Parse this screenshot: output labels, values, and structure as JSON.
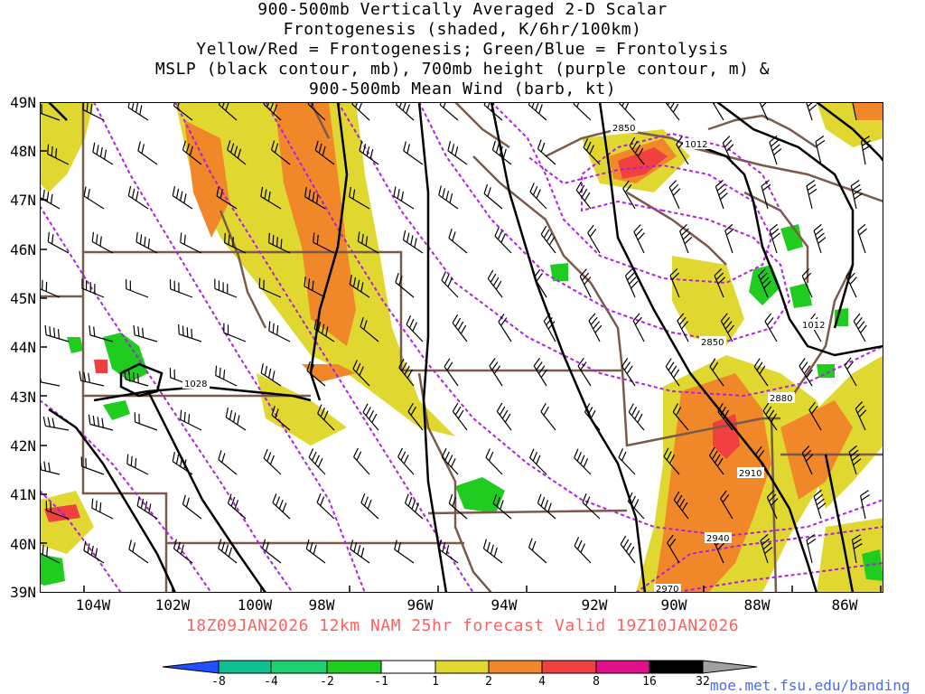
{
  "title_lines": [
    "900-500mb Vertically Averaged 2-D Scalar",
    "Frontogenesis (shaded, K/6hr/100km)",
    "Yellow/Red = Frontogenesis;  Green/Blue = Frontolysis",
    "MSLP (black contour, mb), 700mb height (purple contour, m) &",
    "900-500mb Mean Wind (barb, kt)"
  ],
  "valid_text": "18Z09JAN2026 12km NAM 25hr forecast Valid 19Z10JAN2026",
  "credit": "moe.met.fsu.edu/banding",
  "lat_labels": [
    "49N",
    "48N",
    "47N",
    "46N",
    "45N",
    "44N",
    "43N",
    "42N",
    "41N",
    "40N",
    "39N"
  ],
  "lon_labels": [
    "104W",
    "102W",
    "100W",
    "98W",
    "96W",
    "94W",
    "92W",
    "90W",
    "88W",
    "86W"
  ],
  "contour_labels": {
    "h700": [
      "2850",
      "2850",
      "2880",
      "2910",
      "2940",
      "2970"
    ],
    "mslp": [
      "1028",
      "1012",
      "1012"
    ]
  },
  "legend": {
    "values": [
      "-8",
      "-4",
      "-2",
      "-1",
      "1",
      "2",
      "4",
      "8",
      "16",
      "32"
    ],
    "colors": [
      "#2050ff",
      "#10c090",
      "#20d070",
      "#20cc20",
      "#ffffff",
      "#e0d830",
      "#f0882a",
      "#f04040",
      "#e0108a",
      "#000000",
      "#a0a0a0"
    ]
  },
  "colors": {
    "mslp": "#000000",
    "height": "#b020e0",
    "borders": "#7a5a4a",
    "frontogenesis_weak": "#e0d830",
    "frontogenesis_mod": "#f0882a",
    "frontogenesis_strong": "#f04040",
    "frontolysis": "#20cc20"
  }
}
